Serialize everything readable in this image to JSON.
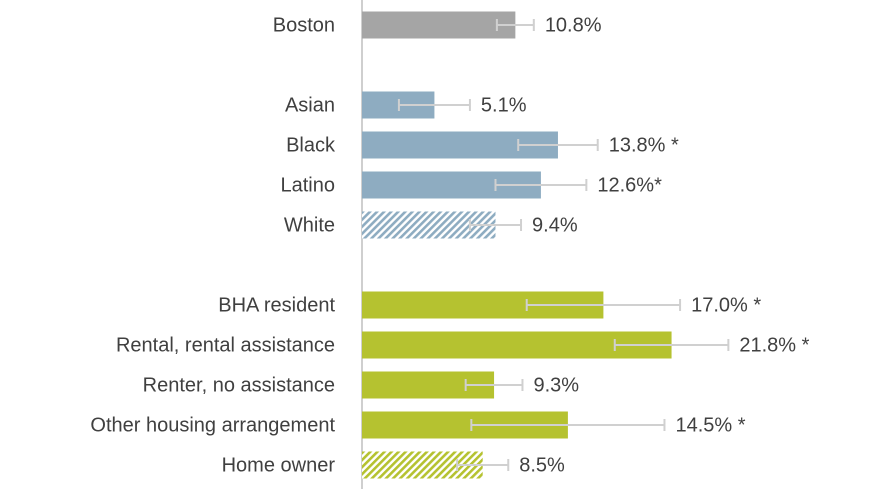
{
  "chart_data": {
    "type": "hbar",
    "categories": [
      "Boston",
      null,
      "Asian",
      "Black",
      "Latino",
      "White",
      null,
      "BHA resident",
      "Rental, rental assistance",
      "Renter, no assistance",
      "Other housing arrangement",
      "Home owner"
    ],
    "values": [
      10.8,
      null,
      5.1,
      13.8,
      12.6,
      9.4,
      null,
      17.0,
      21.8,
      9.3,
      14.5,
      8.5
    ],
    "value_labels": [
      "10.8%",
      null,
      "5.1%",
      "13.8% *",
      "12.6%*",
      "9.4%",
      null,
      "17.0% *",
      "21.8% *",
      "9.3%",
      "14.5% *",
      "8.5%"
    ],
    "errors": [
      1.3,
      null,
      2.5,
      2.8,
      3.2,
      1.8,
      null,
      5.4,
      4.0,
      2.0,
      6.8,
      1.8
    ],
    "colors": [
      "#a5a5a5",
      null,
      "#8eacc1",
      "#8eacc1",
      "#8eacc1",
      "#8eacc1",
      null,
      "#b5c230",
      "#b5c230",
      "#b5c230",
      "#b5c230",
      "#b5c230"
    ],
    "hatched": [
      false,
      null,
      false,
      false,
      false,
      true,
      null,
      false,
      false,
      false,
      false,
      true
    ],
    "xlim": [
      0,
      35
    ]
  }
}
